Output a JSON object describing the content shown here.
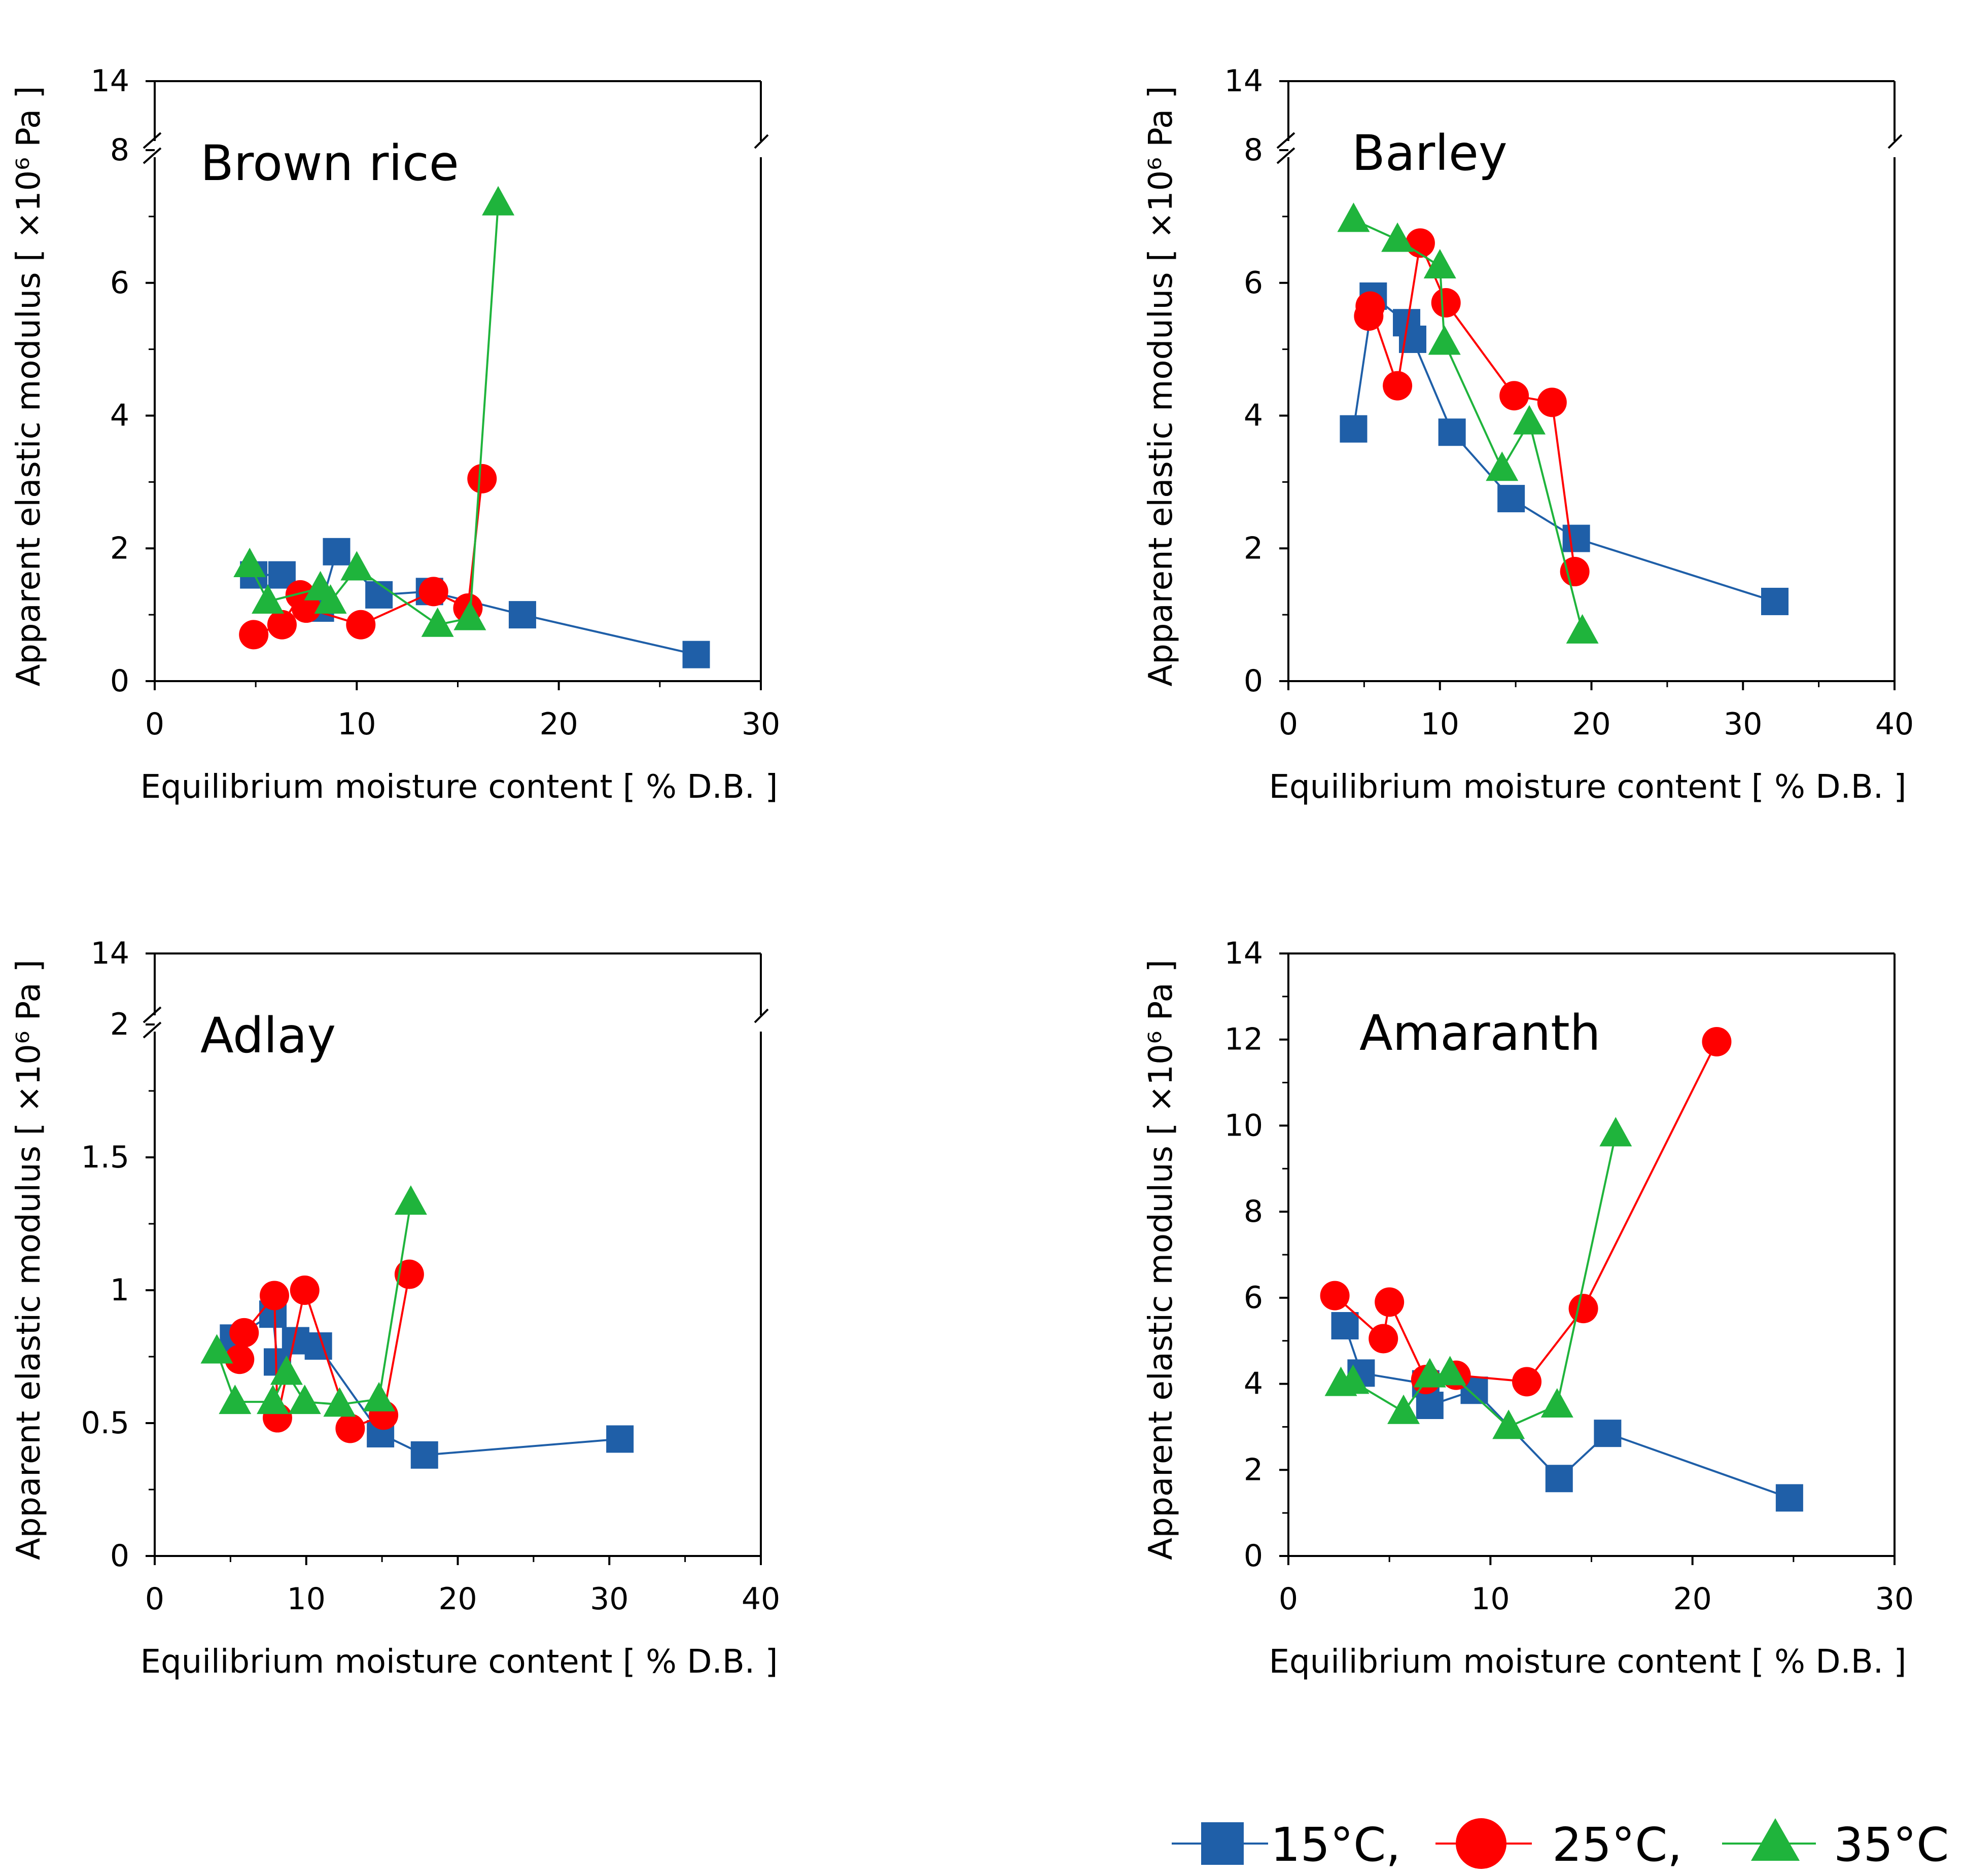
{
  "chart_data": [
    {
      "type": "line",
      "title": "Brown rice",
      "xlabel": "Equilibrium moisture content [ % D.B. ]",
      "ylabel": "Apparent elastic modulus [ ×10⁶ Pa ]",
      "xlim": [
        0,
        30
      ],
      "ylim": [
        0,
        8
      ],
      "xticks": [
        "0",
        "10",
        "20",
        "30"
      ],
      "yticks": [
        "0",
        "2",
        "4",
        "6",
        "8"
      ],
      "ybreak_label": "14",
      "grid": false,
      "series": [
        {
          "name": "15°C",
          "x": [
            4.9,
            6.3,
            8.2,
            9.0,
            11.1,
            13.6,
            18.2,
            26.8
          ],
          "y": [
            1.6,
            1.6,
            1.1,
            1.95,
            1.3,
            1.35,
            1.0,
            0.4
          ]
        },
        {
          "name": "25°C",
          "x": [
            4.9,
            6.3,
            7.2,
            7.5,
            10.2,
            13.8,
            15.5,
            16.2
          ],
          "y": [
            0.7,
            0.85,
            1.3,
            1.1,
            0.85,
            1.35,
            1.1,
            3.05
          ]
        },
        {
          "name": "35°C",
          "x": [
            4.7,
            5.6,
            8.2,
            8.7,
            10.0,
            14.0,
            15.6,
            17.0
          ],
          "y": [
            1.75,
            1.2,
            1.4,
            1.2,
            1.7,
            0.85,
            0.95,
            7.2
          ]
        }
      ]
    },
    {
      "type": "line",
      "title": "Barley",
      "xlabel": "Equilibrium moisture content [ % D.B. ]",
      "ylabel": "Apparent elastic modulus [ ×10⁶ Pa ]",
      "xlim": [
        0,
        40
      ],
      "ylim": [
        0,
        8
      ],
      "xticks": [
        "0",
        "10",
        "20",
        "30",
        "40"
      ],
      "yticks": [
        "0",
        "2",
        "4",
        "6",
        "8"
      ],
      "ybreak_label": "14",
      "grid": false,
      "series": [
        {
          "name": "15°C",
          "x": [
            4.3,
            5.6,
            7.8,
            8.2,
            10.8,
            14.7,
            19.0,
            32.1
          ],
          "y": [
            3.8,
            5.8,
            5.4,
            5.15,
            3.75,
            2.75,
            2.15,
            1.2
          ]
        },
        {
          "name": "25°C",
          "x": [
            5.3,
            5.4,
            7.2,
            8.7,
            10.4,
            14.9,
            17.4,
            18.9
          ],
          "y": [
            5.5,
            5.65,
            4.45,
            6.6,
            5.7,
            4.3,
            4.2,
            1.65
          ]
        },
        {
          "name": "35°C",
          "x": [
            4.3,
            7.2,
            10.0,
            10.3,
            14.1,
            15.9,
            19.4
          ],
          "y": [
            6.95,
            6.65,
            6.25,
            5.1,
            3.2,
            3.9,
            0.75
          ]
        }
      ]
    },
    {
      "type": "line",
      "title": "Adlay",
      "xlabel": "Equilibrium moisture content [ % D.B. ]",
      "ylabel": "Apparent elastic modulus [ ×10⁶ Pa ]",
      "xlim": [
        0,
        40
      ],
      "ylim": [
        0,
        2
      ],
      "xticks": [
        "0",
        "10",
        "20",
        "30",
        "40"
      ],
      "yticks": [
        "0",
        "0.5",
        "1",
        "1.5",
        "2"
      ],
      "ybreak_label": "14",
      "grid": false,
      "series": [
        {
          "name": "15°C",
          "x": [
            5.2,
            7.8,
            8.1,
            9.3,
            10.8,
            14.9,
            17.8,
            30.7
          ],
          "y": [
            0.82,
            0.91,
            0.73,
            0.81,
            0.79,
            0.46,
            0.38,
            0.44
          ]
        },
        {
          "name": "25°C",
          "x": [
            5.6,
            5.9,
            7.9,
            8.1,
            9.9,
            12.9,
            15.1,
            16.8
          ],
          "y": [
            0.74,
            0.84,
            0.98,
            0.52,
            1.0,
            0.48,
            0.53,
            1.06
          ]
        },
        {
          "name": "35°C",
          "x": [
            4.1,
            5.3,
            7.8,
            8.7,
            9.9,
            12.2,
            14.8,
            16.9
          ],
          "y": [
            0.77,
            0.58,
            0.58,
            0.69,
            0.58,
            0.57,
            0.59,
            1.33
          ]
        }
      ]
    },
    {
      "type": "line",
      "title": "Amaranth",
      "xlabel": "Equilibrium moisture content [ % D.B. ]",
      "ylabel": "Apparent elastic modulus [ ×10⁶ Pa ]",
      "xlim": [
        0,
        30
      ],
      "ylim": [
        0,
        14
      ],
      "xticks": [
        "0",
        "10",
        "20",
        "30"
      ],
      "yticks": [
        "0",
        "2",
        "4",
        "6",
        "8",
        "10",
        "12",
        "14"
      ],
      "grid": false,
      "series": [
        {
          "name": "15°C",
          "x": [
            2.8,
            3.6,
            6.8,
            7.0,
            9.2,
            13.4,
            15.8,
            24.8
          ],
          "y": [
            5.35,
            4.25,
            4.0,
            3.5,
            3.85,
            1.8,
            2.85,
            1.35
          ]
        },
        {
          "name": "25°C",
          "x": [
            2.3,
            4.7,
            5.0,
            6.8,
            8.3,
            11.8,
            14.6,
            21.2
          ],
          "y": [
            6.05,
            5.05,
            5.9,
            4.1,
            4.2,
            4.05,
            5.75,
            11.95
          ]
        },
        {
          "name": "35°C",
          "x": [
            2.6,
            3.2,
            5.7,
            7.0,
            8.0,
            10.9,
            13.3,
            16.2
          ],
          "y": [
            4.0,
            4.05,
            3.35,
            4.2,
            4.25,
            3.0,
            3.5,
            9.8
          ]
        }
      ]
    }
  ],
  "legend": {
    "items": [
      {
        "label": "15°C,",
        "color": "#1f5fa8",
        "marker": "square"
      },
      {
        "label": "25°C,",
        "color": "#ff0000",
        "marker": "circle"
      },
      {
        "label": "35°C",
        "color": "#1fb43c",
        "marker": "triangle"
      }
    ]
  },
  "colors": {
    "s15": "#1f5fa8",
    "s25": "#ff0000",
    "s35": "#1fb43c"
  }
}
